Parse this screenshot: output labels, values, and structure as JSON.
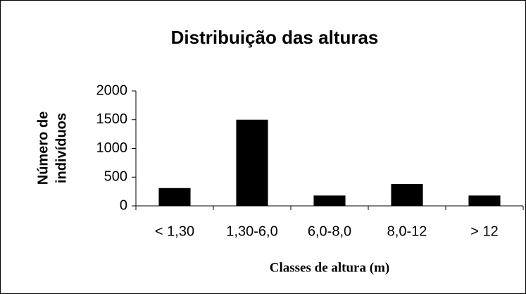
{
  "chart_data": {
    "type": "bar",
    "title": "Distribuição das alturas",
    "ylabel": [
      "Número de",
      "indivíduos"
    ],
    "xlabel": "Classes de altura (m)",
    "categories": [
      "< 1,30",
      "1,30-6,0",
      "6,0-8,0",
      "8,0-12",
      "> 12"
    ],
    "values": [
      310,
      1500,
      180,
      380,
      180
    ],
    "color": "#000000",
    "ylim": [
      0,
      2000
    ],
    "yticks": [
      0,
      500,
      1000,
      1500,
      2000
    ],
    "grid": false
  }
}
